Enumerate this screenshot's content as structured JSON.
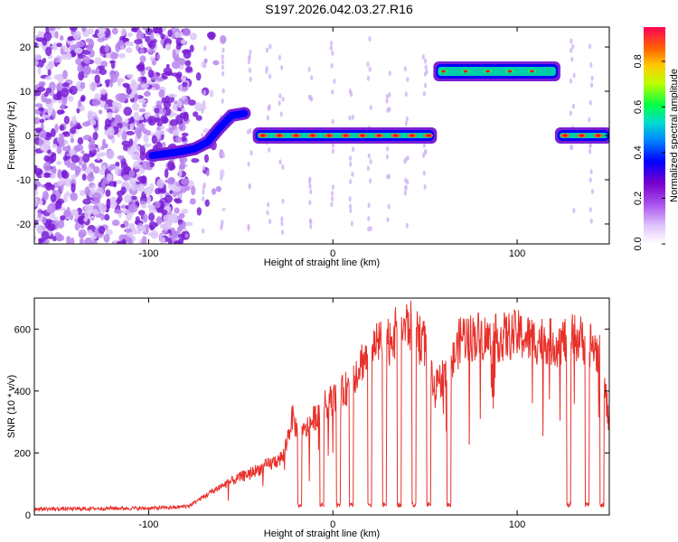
{
  "title": "S197.2026.042.03.27.R16",
  "chart_data": [
    {
      "type": "heatmap",
      "xlabel": "Height of straight line (km)",
      "ylabel": "Frequency (Hz)",
      "xlim": [
        -162,
        150
      ],
      "ylim": [
        -24.5,
        24.5
      ],
      "xticks": [
        -100,
        0,
        100
      ],
      "yticks": [
        -20,
        -10,
        0,
        10,
        20
      ],
      "grid": false,
      "colorbar": {
        "label": "Normalized spectral amplitude",
        "range": [
          0,
          0.95
        ],
        "ticks": [
          0.0,
          0.2,
          0.4,
          0.6,
          0.8
        ],
        "colors": [
          "#ffffff",
          "#cc99ff",
          "#7700cc",
          "#0000ff",
          "#00ccff",
          "#00ff66",
          "#ccff00",
          "#ffcc00",
          "#ff6600",
          "#ff0044"
        ]
      },
      "features": [
        {
          "name": "noise band",
          "x_range": [
            -162,
            -78
          ],
          "freq_range": [
            -24.5,
            24.5
          ],
          "amplitude": 0.15
        },
        {
          "name": "rising track",
          "points": [
            [
              -98,
              -4.5
            ],
            [
              -85,
              -3.8
            ],
            [
              -75,
              -3.0
            ],
            [
              -68,
              -1.5
            ],
            [
              -62,
              1.5
            ],
            [
              -55,
              4.5
            ],
            [
              -48,
              5.0
            ]
          ],
          "amplitude": 0.35
        },
        {
          "name": "zero track A",
          "x_range": [
            -42,
            55
          ],
          "freq": 0.0,
          "amplitude": 0.85
        },
        {
          "name": "high track",
          "x_range": [
            56,
            122
          ],
          "freq": 14.5,
          "amplitude": 0.55
        },
        {
          "name": "zero track B",
          "x_range": [
            122,
            150
          ],
          "freq": 0.0,
          "amplitude": 0.85
        }
      ]
    },
    {
      "type": "line",
      "xlabel": "Height of straight line (km)",
      "ylabel": "SNR (10 * v/v)",
      "xlim": [
        -162,
        150
      ],
      "ylim": [
        0,
        700
      ],
      "xticks": [
        -100,
        0,
        100
      ],
      "yticks": [
        0,
        200,
        400,
        600
      ],
      "grid": false,
      "color": "#e8302a",
      "x": [
        -162,
        -140,
        -120,
        -100,
        -85,
        -78,
        -70,
        -62,
        -55,
        -48,
        -40,
        -33,
        -27,
        -22,
        -18,
        -12,
        -6,
        0,
        5,
        10,
        15,
        20,
        25,
        30,
        35,
        40,
        45,
        50,
        55,
        60,
        65,
        70,
        75,
        80,
        85,
        90,
        95,
        100,
        105,
        110,
        115,
        120,
        125,
        130,
        135,
        140,
        145,
        150
      ],
      "y": [
        20,
        20,
        22,
        22,
        25,
        30,
        60,
        90,
        110,
        130,
        150,
        170,
        190,
        320,
        250,
        300,
        350,
        380,
        400,
        430,
        500,
        530,
        560,
        580,
        600,
        620,
        610,
        560,
        400,
        460,
        500,
        590,
        580,
        590,
        570,
        580,
        585,
        590,
        580,
        570,
        575,
        560,
        570,
        580,
        575,
        560,
        520,
        300
      ],
      "dips_x": [
        -18,
        -6,
        3,
        10,
        20,
        28,
        36,
        44,
        52,
        63,
        128,
        138,
        146
      ],
      "dip_value": 25
    }
  ]
}
